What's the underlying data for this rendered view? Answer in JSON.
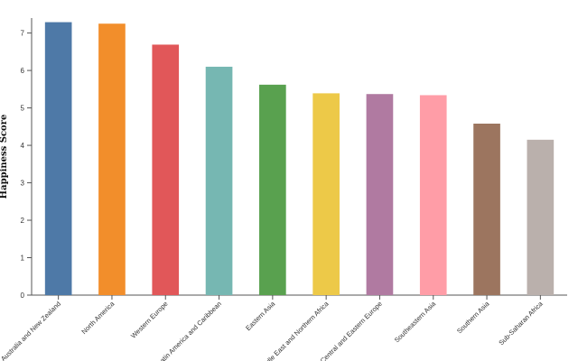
{
  "chart_data": {
    "type": "bar",
    "ylabel": "Happiness Score",
    "xlabel": "",
    "ylim": [
      0,
      7.4
    ],
    "yticks": [
      "0",
      "1",
      "2",
      "3",
      "4",
      "5",
      "6",
      "7"
    ],
    "grid": false,
    "categories": [
      "Australia and New Zealand",
      "North America",
      "Western Europe",
      "Latin America and Caribbean",
      "Eastern Asia",
      "Middle East and Northern Africa",
      "Central and Eastern Europe",
      "Southeastern Asia",
      "Southern Asia",
      "Sub-Saharan Africa"
    ],
    "values": [
      7.29,
      7.25,
      6.69,
      6.1,
      5.62,
      5.39,
      5.37,
      5.34,
      4.58,
      4.15
    ],
    "colors": [
      "#4e79a7",
      "#f28e2b",
      "#e15759",
      "#76b7b2",
      "#59a14f",
      "#edc948",
      "#b07aa1",
      "#ff9da7",
      "#9c755f",
      "#bab0ac"
    ]
  }
}
